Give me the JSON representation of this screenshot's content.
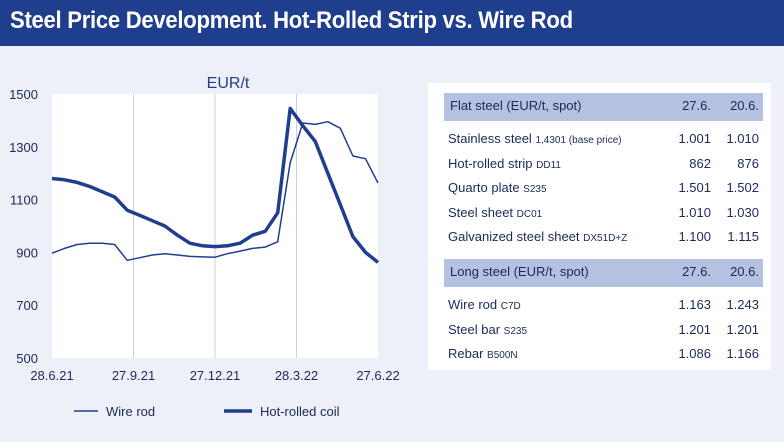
{
  "header": {
    "title": "Steel Price Development. Hot-Rolled Strip vs. Wire Rod"
  },
  "chart_data": {
    "type": "line",
    "title": "EUR/t",
    "ylabel": "",
    "xlabel": "",
    "ylim": [
      500,
      1500
    ],
    "yticks": [
      "1500",
      "1300",
      "1100",
      "900",
      "700",
      "500"
    ],
    "xticks": [
      "28.6.21",
      "27.9.21",
      "27.12.21",
      "28.3.22",
      "27.6.22"
    ],
    "x": [
      0,
      2,
      4,
      6,
      8,
      10,
      12,
      14,
      16,
      18,
      20,
      22,
      24,
      26,
      28,
      30,
      32,
      34,
      36,
      38,
      40,
      42,
      44,
      46,
      48,
      50,
      52
    ],
    "series": [
      {
        "name": "Wire rod",
        "color": "#1f3e8e",
        "values": [
          897,
          915,
          930,
          935,
          935,
          930,
          870,
          880,
          890,
          895,
          890,
          885,
          883,
          882,
          895,
          905,
          915,
          920,
          940,
          1240,
          1390,
          1385,
          1395,
          1370,
          1265,
          1255,
          1163
        ]
      },
      {
        "name": "Hot-rolled coil",
        "color": "#1f3e8e",
        "values": [
          1180,
          1175,
          1165,
          1150,
          1130,
          1110,
          1060,
          1040,
          1020,
          1000,
          965,
          935,
          925,
          922,
          925,
          935,
          965,
          980,
          1050,
          1445,
          1380,
          1320,
          1200,
          1080,
          960,
          900,
          862
        ]
      }
    ],
    "grid": "vertical",
    "legend": "bottom"
  },
  "legend": {
    "wire": "Wire rod",
    "hot": "Hot-rolled coil"
  },
  "flat": {
    "title": "Flat steel (EUR/t, spot)",
    "d1": "27.6.",
    "d2": "20.6.",
    "rows": [
      {
        "name": "Stainless steel",
        "grade": "1,4301 (base price)",
        "v1": "1.001",
        "v2": "1.010"
      },
      {
        "name": "Hot-rolled strip",
        "grade": "DD11",
        "v1": "862",
        "v2": "876"
      },
      {
        "name": "Quarto plate",
        "grade": "S235",
        "v1": "1.501",
        "v2": "1.502"
      },
      {
        "name": "Steel sheet",
        "grade": "DC01",
        "v1": "1.010",
        "v2": "1.030"
      },
      {
        "name": "Galvanized steel sheet",
        "grade": "DX51D+Z",
        "v1": "1.100",
        "v2": "1.115"
      }
    ]
  },
  "long": {
    "title": "Long steel (EUR/t, spot)",
    "d1": "27.6.",
    "d2": "20.6.",
    "rows": [
      {
        "name": "Wire rod",
        "grade": "C7D",
        "v1": "1.163",
        "v2": "1.243"
      },
      {
        "name": "Steel bar",
        "grade": "S235",
        "v1": "1.201",
        "v2": "1.201"
      },
      {
        "name": "Rebar",
        "grade": "B500N",
        "v1": "1.086",
        "v2": "1.166"
      }
    ]
  }
}
